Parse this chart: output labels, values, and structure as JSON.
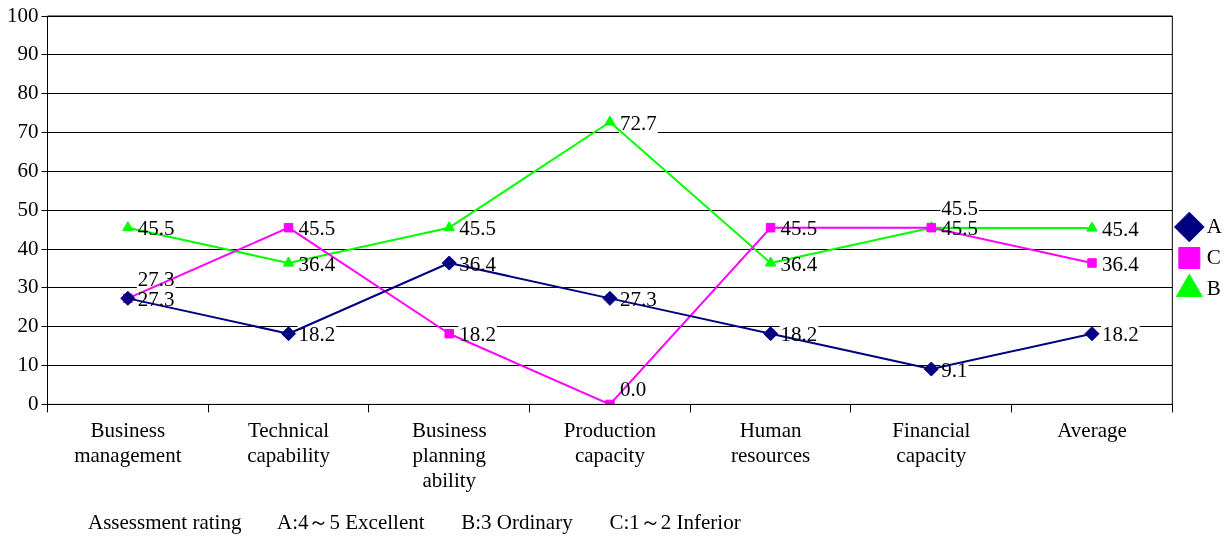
{
  "chart_data": {
    "type": "line",
    "categories": [
      "Business management",
      "Technical capability",
      "Business planning ability",
      "Production capacity",
      "Human resources",
      "Financial capacity",
      "Average"
    ],
    "series": [
      {
        "name": "A",
        "color": "#000080",
        "marker": "diamond",
        "values": [
          27.3,
          18.2,
          36.4,
          27.3,
          18.2,
          9.1,
          18.2
        ],
        "value_labels": [
          "27.3",
          "18.2",
          "36.4",
          "27.3",
          "18.2",
          "9.1",
          "18.2"
        ]
      },
      {
        "name": "C",
        "color": "#ff00ff",
        "marker": "square",
        "values": [
          27.3,
          45.5,
          18.2,
          0.0,
          45.5,
          45.5,
          36.4
        ],
        "value_labels": [
          "27.3",
          "45.5",
          "18.2",
          "0.0",
          "45.5",
          "45.5",
          "36.4"
        ]
      },
      {
        "name": "B",
        "color": "#00ff00",
        "marker": "triangle",
        "values": [
          45.5,
          36.4,
          45.5,
          72.7,
          36.4,
          45.5,
          45.4
        ],
        "value_labels": [
          "45.5",
          "36.4",
          "45.5",
          "72.7",
          "36.4",
          "45.5",
          "45.4"
        ]
      }
    ],
    "ylim": [
      0,
      100
    ],
    "yticks": [
      0,
      10,
      20,
      30,
      40,
      50,
      60,
      70,
      80,
      90,
      100
    ],
    "grid": "y",
    "legend": "right",
    "annotations": [
      "Assessment rating       A:4～5 Excellent       B:3 Ordinary       C:1～2 Inferior"
    ]
  }
}
